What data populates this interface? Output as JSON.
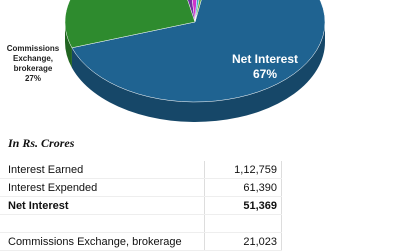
{
  "chart_data": {
    "type": "pie",
    "categories": [
      "Net Interest",
      "Commissions Exchange, brokerage",
      null,
      null,
      null,
      null
    ],
    "values": [
      67,
      27,
      2,
      2,
      1,
      1
    ],
    "value_labels": [
      "67%",
      "27%",
      null,
      null,
      null,
      null
    ],
    "colors": [
      "#1f6391",
      "#2e8b2e",
      "#7030a0",
      "#cc33cc",
      "#33aacc",
      "#66aa44"
    ]
  },
  "table": {
    "heading": "In Rs. Crores",
    "rows": [
      [
        "Interest Earned",
        "1,12,759"
      ],
      [
        "Interest Expended",
        "61,390"
      ],
      [
        "Net Interest",
        "51,369"
      ],
      [
        "Commissions Exchange, brokerage",
        "21,023"
      ]
    ]
  }
}
